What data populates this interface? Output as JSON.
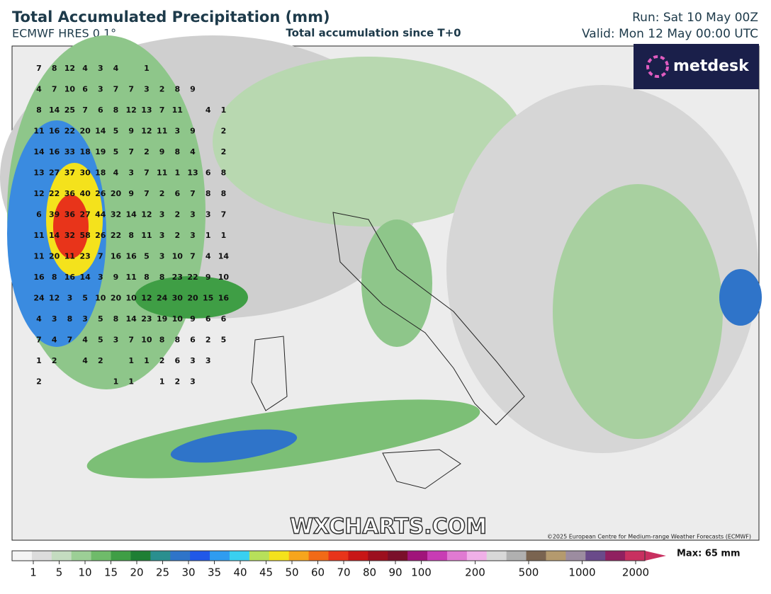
{
  "header": {
    "title": "Total Accumulated Precipitation (mm)",
    "model": "ECMWF HRES 0.1°",
    "subtitle": "Total accumulation since T+0",
    "run": "Run: Sat 10 May 00Z",
    "valid": "Valid: Mon 12 May 00:00 UTC"
  },
  "logo": {
    "text": "metdesk"
  },
  "watermark": "WXCHARTS.COM",
  "copyright": "©2025 European Centre for Medium-range Weather Forecasts (ECMWF)",
  "grid_labels": {
    "rows": [
      [
        7,
        8,
        12,
        4,
        3,
        4,
        null,
        1
      ],
      [
        4,
        7,
        10,
        6,
        3,
        7,
        7,
        3,
        2,
        8,
        9
      ],
      [
        8,
        14,
        25,
        7,
        6,
        8,
        12,
        13,
        7,
        11,
        null,
        4,
        1
      ],
      [
        11,
        16,
        22,
        20,
        14,
        5,
        9,
        12,
        11,
        3,
        9,
        null,
        2
      ],
      [
        14,
        16,
        33,
        18,
        19,
        5,
        7,
        2,
        9,
        8,
        4,
        null,
        2
      ],
      [
        13,
        27,
        37,
        30,
        18,
        4,
        3,
        7,
        11,
        1,
        13,
        6,
        8
      ],
      [
        12,
        22,
        36,
        40,
        26,
        20,
        9,
        7,
        2,
        6,
        7,
        8,
        8
      ],
      [
        6,
        39,
        36,
        27,
        44,
        32,
        14,
        12,
        3,
        2,
        3,
        3,
        7
      ],
      [
        11,
        14,
        32,
        58,
        26,
        22,
        8,
        11,
        3,
        2,
        3,
        1,
        1
      ],
      [
        11,
        20,
        11,
        23,
        7,
        16,
        16,
        5,
        3,
        10,
        7,
        4,
        14
      ],
      [
        16,
        8,
        16,
        14,
        3,
        9,
        11,
        8,
        8,
        23,
        22,
        9,
        10
      ],
      [
        24,
        12,
        3,
        5,
        10,
        20,
        10,
        12,
        24,
        30,
        20,
        15,
        16
      ],
      [
        4,
        3,
        8,
        3,
        5,
        8,
        14,
        23,
        19,
        10,
        9,
        6,
        6
      ],
      [
        7,
        4,
        7,
        4,
        5,
        3,
        7,
        10,
        8,
        8,
        6,
        2,
        5
      ],
      [
        1,
        2,
        null,
        4,
        2,
        null,
        1,
        1,
        2,
        6,
        3,
        3
      ],
      [
        2,
        null,
        null,
        null,
        null,
        1,
        1,
        null,
        1,
        2,
        3
      ]
    ]
  },
  "colorbar": {
    "ticks": [
      1,
      5,
      10,
      15,
      20,
      25,
      30,
      35,
      40,
      45,
      50,
      60,
      70,
      80,
      90,
      100,
      200,
      500,
      1000,
      2000
    ],
    "colors": [
      "#f4f4f4",
      "#dcdcdc",
      "#c4dcc0",
      "#9ccf96",
      "#6fbb6a",
      "#3f9e45",
      "#1e7f34",
      "#2a8f8f",
      "#2f74c9",
      "#2058e8",
      "#2f9cf0",
      "#39d0f0",
      "#b7e05a",
      "#f4e21c",
      "#f7a51c",
      "#f26a16",
      "#e8341a",
      "#c81616",
      "#9c0f1e",
      "#7a0f2a",
      "#a0147a",
      "#c83cb4",
      "#e07ad2",
      "#f0b0e8",
      "#d8d8d8",
      "#b0b0b0",
      "#7a6450",
      "#b49a6e",
      "#9c8ca0",
      "#6a4a8a",
      "#902060",
      "#c83060"
    ],
    "max_label": "Max: 65 mm"
  }
}
